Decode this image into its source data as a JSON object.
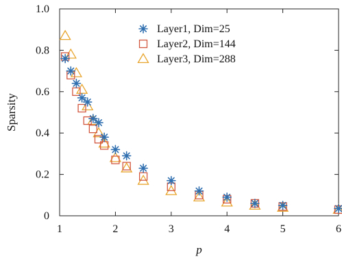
{
  "chart_data": {
    "type": "scatter",
    "xlabel": "p",
    "ylabel": "Sparsity",
    "xlim": [
      1,
      6
    ],
    "ylim": [
      0,
      1.0
    ],
    "x_ticks": [
      "1",
      "2",
      "3",
      "4",
      "5",
      "6"
    ],
    "y_ticks": [
      "0",
      "0.2",
      "0.4",
      "0.6",
      "0.8",
      "1.0"
    ],
    "grid": false,
    "legend_position": "top-center",
    "series": [
      {
        "name": "Layer1, Dim=25",
        "marker": "asterisk",
        "color": "#2f6fb0",
        "x": [
          1.1,
          1.2,
          1.3,
          1.4,
          1.5,
          1.6,
          1.7,
          1.8,
          2.0,
          2.2,
          2.5,
          3.0,
          3.5,
          4.0,
          4.5,
          5.0,
          6.0
        ],
        "y": [
          0.76,
          0.7,
          0.64,
          0.57,
          0.55,
          0.47,
          0.45,
          0.38,
          0.32,
          0.29,
          0.23,
          0.17,
          0.12,
          0.09,
          0.06,
          0.05,
          0.035
        ]
      },
      {
        "name": "Layer2, Dim=144",
        "marker": "square",
        "color": "#d2563e",
        "x": [
          1.1,
          1.2,
          1.3,
          1.4,
          1.5,
          1.6,
          1.7,
          1.8,
          2.0,
          2.2,
          2.5,
          3.0,
          3.5,
          4.0,
          4.5,
          5.0,
          6.0
        ],
        "y": [
          0.77,
          0.68,
          0.6,
          0.52,
          0.46,
          0.42,
          0.37,
          0.34,
          0.27,
          0.24,
          0.19,
          0.14,
          0.1,
          0.08,
          0.06,
          0.045,
          0.03
        ]
      },
      {
        "name": "Layer3, Dim=288",
        "marker": "triangle",
        "color": "#e8a52e",
        "x": [
          1.1,
          1.2,
          1.3,
          1.4,
          1.5,
          1.6,
          1.7,
          1.8,
          2.0,
          2.2,
          2.5,
          3.0,
          3.5,
          4.0,
          4.5,
          5.0,
          6.0
        ],
        "y": [
          0.87,
          0.78,
          0.69,
          0.61,
          0.53,
          0.46,
          0.4,
          0.35,
          0.28,
          0.23,
          0.17,
          0.12,
          0.09,
          0.065,
          0.05,
          0.04,
          0.03
        ]
      }
    ]
  }
}
